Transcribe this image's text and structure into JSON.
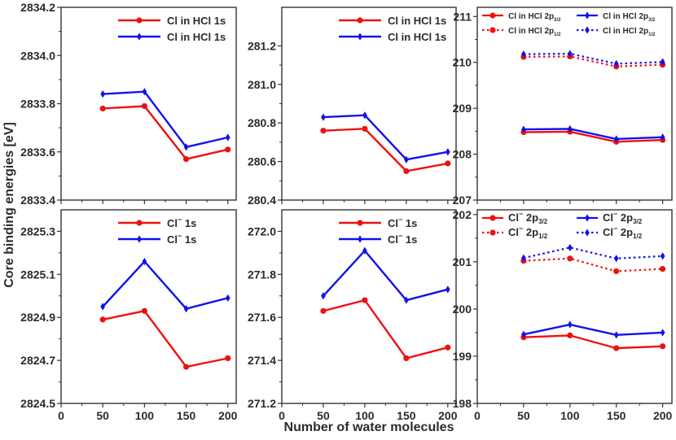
{
  "y_axis_label": "Core binding energies [eV]",
  "x_axis_label": "Number of water molecules",
  "chart_data": [
    {
      "type": "line",
      "panel": "HCl Cl 1s (top-left)",
      "xlim": [
        0,
        210
      ],
      "ylim": [
        2833.4,
        2834.2
      ],
      "xticks": [
        0,
        50,
        100,
        150,
        200
      ],
      "yticks": [
        "2833.4",
        "2833.6",
        "2833.8",
        "2834.0",
        "2834.2"
      ],
      "x": [
        50,
        100,
        150,
        200
      ],
      "series": [
        {
          "name": "Cl in HCl 1s",
          "color": "#ee1111",
          "marker": "circle",
          "dash": "solid",
          "values": [
            2833.78,
            2833.79,
            2833.57,
            2833.61
          ]
        },
        {
          "name": "Cl in HCl 1s",
          "color": "#1111ee",
          "marker": "diamond",
          "dash": "solid",
          "values": [
            2833.84,
            2833.85,
            2833.62,
            2833.66
          ]
        }
      ]
    },
    {
      "type": "line",
      "panel": "HCl Cl 1s (top-middle)",
      "xlim": [
        0,
        210
      ],
      "ylim": [
        280.4,
        281.4
      ],
      "xticks": [
        0,
        50,
        100,
        150,
        200
      ],
      "yticks": [
        "280.4",
        "280.6",
        "280.8",
        "281.0",
        "281.2"
      ],
      "x": [
        50,
        100,
        150,
        200
      ],
      "series": [
        {
          "name": "Cl in HCl 1s",
          "color": "#ee1111",
          "marker": "circle",
          "dash": "solid",
          "values": [
            280.76,
            280.77,
            280.55,
            280.59
          ]
        },
        {
          "name": "Cl in HCl 1s",
          "color": "#1111ee",
          "marker": "diamond",
          "dash": "solid",
          "values": [
            280.83,
            280.84,
            280.61,
            280.65
          ]
        }
      ]
    },
    {
      "type": "line",
      "panel": "HCl Cl 2p (top-right)",
      "xlim": [
        0,
        210
      ],
      "ylim": [
        207,
        211.2
      ],
      "xticks": [
        0,
        50,
        100,
        150,
        200
      ],
      "yticks": [
        "207",
        "208",
        "209",
        "210",
        "211"
      ],
      "x": [
        50,
        100,
        150,
        200
      ],
      "series": [
        {
          "name": "Cl in HCl 2p",
          "sub": "3/2",
          "color": "#ee1111",
          "marker": "circle",
          "dash": "solid",
          "values": [
            208.48,
            208.49,
            208.27,
            208.31
          ]
        },
        {
          "name": "Cl in HCl 2p",
          "sub": "1/2",
          "color": "#ee1111",
          "marker": "circle",
          "dash": "dot",
          "values": [
            210.12,
            210.13,
            209.91,
            209.95
          ]
        },
        {
          "name": "Cl in HCl 2p",
          "sub": "3/2",
          "color": "#1111ee",
          "marker": "diamond",
          "dash": "solid",
          "values": [
            208.54,
            208.55,
            208.33,
            208.37
          ]
        },
        {
          "name": "Cl in HCl 2p",
          "sub": "1/2",
          "color": "#1111ee",
          "marker": "diamond",
          "dash": "dot",
          "values": [
            210.18,
            210.19,
            209.97,
            210.01
          ]
        }
      ]
    },
    {
      "type": "line",
      "panel": "Cl- 1s (bottom-left)",
      "xlim": [
        0,
        210
      ],
      "ylim": [
        2824.5,
        2825.4
      ],
      "xticks": [
        0,
        50,
        100,
        150,
        200
      ],
      "yticks": [
        "2824.5",
        "2824.7",
        "2824.9",
        "2825.1",
        "2825.3"
      ],
      "x": [
        50,
        100,
        150,
        200
      ],
      "series": [
        {
          "name": "Cl",
          "sup": "−",
          "tail": " 1s",
          "color": "#ee1111",
          "marker": "circle",
          "dash": "solid",
          "values": [
            2824.89,
            2824.93,
            2824.67,
            2824.71
          ]
        },
        {
          "name": "Cl",
          "sup": "−",
          "tail": " 1s",
          "color": "#1111ee",
          "marker": "diamond",
          "dash": "solid",
          "values": [
            2824.95,
            2825.16,
            2824.94,
            2824.99
          ]
        }
      ]
    },
    {
      "type": "line",
      "panel": "Cl- 1s (bottom-middle)",
      "xlim": [
        0,
        210
      ],
      "ylim": [
        271.2,
        272.1
      ],
      "xticks": [
        0,
        50,
        100,
        150,
        200
      ],
      "yticks": [
        "271.2",
        "271.4",
        "271.6",
        "271.8",
        "272.0"
      ],
      "x": [
        50,
        100,
        150,
        200
      ],
      "series": [
        {
          "name": "Cl",
          "sup": "−",
          "tail": " 1s",
          "color": "#ee1111",
          "marker": "circle",
          "dash": "solid",
          "values": [
            271.63,
            271.68,
            271.41,
            271.46
          ]
        },
        {
          "name": "Cl",
          "sup": "−",
          "tail": " 1s",
          "color": "#1111ee",
          "marker": "diamond",
          "dash": "solid",
          "values": [
            271.7,
            271.91,
            271.68,
            271.73
          ]
        }
      ]
    },
    {
      "type": "line",
      "panel": "Cl- 2p (bottom-right)",
      "xlim": [
        0,
        210
      ],
      "ylim": [
        198,
        202.1
      ],
      "xticks": [
        0,
        50,
        100,
        150,
        200
      ],
      "yticks": [
        "198",
        "199",
        "200",
        "201",
        "202"
      ],
      "x": [
        50,
        100,
        150,
        200
      ],
      "series": [
        {
          "name": "Cl",
          "sup": "−",
          "tail": " 2p",
          "sub": "3/2",
          "color": "#ee1111",
          "marker": "circle",
          "dash": "solid",
          "values": [
            199.4,
            199.44,
            199.17,
            199.21
          ]
        },
        {
          "name": "Cl",
          "sup": "−",
          "tail": " 2p",
          "sub": "1/2",
          "color": "#ee1111",
          "marker": "circle",
          "dash": "dot",
          "values": [
            201.02,
            201.07,
            200.8,
            200.85
          ]
        },
        {
          "name": "Cl",
          "sup": "−",
          "tail": " 2p",
          "sub": "3/2",
          "color": "#1111ee",
          "marker": "diamond",
          "dash": "solid",
          "values": [
            199.46,
            199.67,
            199.45,
            199.5
          ]
        },
        {
          "name": "Cl",
          "sup": "−",
          "tail": " 2p",
          "sub": "1/2",
          "color": "#1111ee",
          "marker": "diamond",
          "dash": "dot",
          "values": [
            201.08,
            201.3,
            201.07,
            201.12
          ]
        }
      ]
    }
  ]
}
